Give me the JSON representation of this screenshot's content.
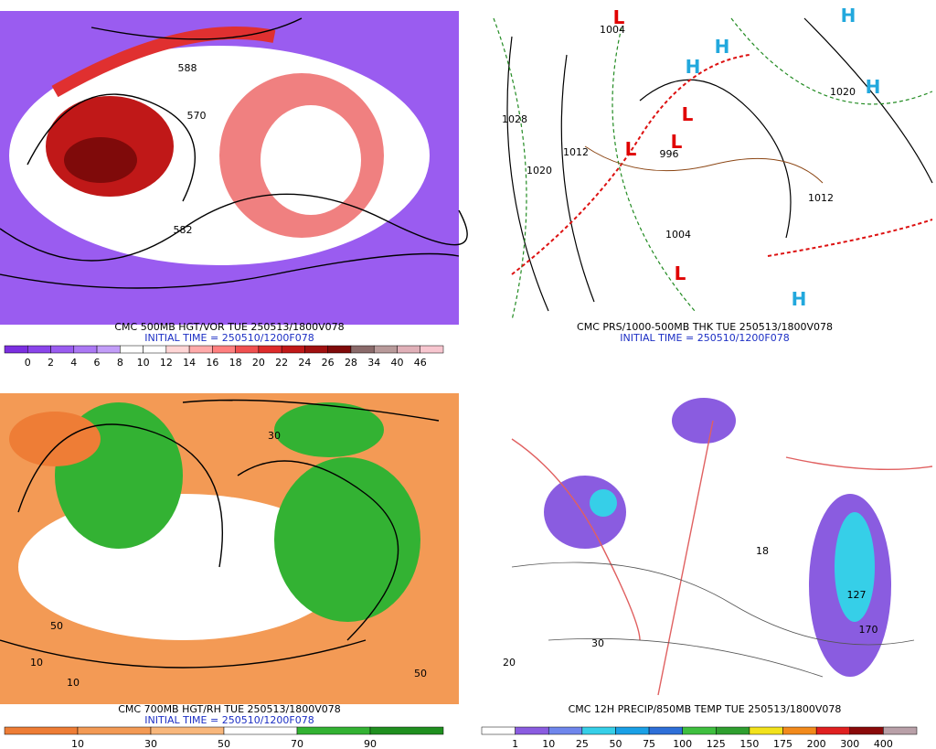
{
  "panels": [
    {
      "title": "CMC 500MB HGT/VOR TUE 250513/1800V078",
      "initial_time": "INITIAL TIME = 250510/1200F078",
      "colorbar": {
        "labels": [
          "0",
          "2",
          "4",
          "6",
          "8",
          "10",
          "12",
          "14",
          "16",
          "18",
          "20",
          "22",
          "24",
          "26",
          "28",
          "34",
          "40",
          "46"
        ],
        "colors": [
          "#7b2fe0",
          "#8a45ea",
          "#9a5cf0",
          "#ab78f4",
          "#c29df8",
          "#ffffff",
          "#ffffff",
          "#ffd6d6",
          "#ffaaaa",
          "#ff7f7f",
          "#f05050",
          "#dd2b2b",
          "#c01818",
          "#a01010",
          "#7f0a0a",
          "#8a6a6a",
          "#b89a9a",
          "#e0b0b8",
          "#f7c6cf"
        ]
      },
      "map_labels": [
        "588",
        "570",
        "582"
      ]
    },
    {
      "title": "CMC PRS/1000-500MB THK TUE 250513/1800V078",
      "initial_time": "INITIAL TIME = 250510/1200F078",
      "map_labels": [
        "1004",
        "1028",
        "1012",
        "1020",
        "996",
        "1004",
        "1012",
        "1020",
        "L",
        "L",
        "L",
        "L",
        "L",
        "H",
        "H",
        "H",
        "H",
        "H"
      ]
    },
    {
      "title": "CMC 700MB HGT/RH TUE 250513/1800V078",
      "initial_time": "INITIAL TIME = 250510/1200F078",
      "colorbar": {
        "labels": [
          "10",
          "30",
          "50",
          "70",
          "90"
        ],
        "colors": [
          "#ee7d36",
          "#f39a55",
          "#f8b77c",
          "#ffffff",
          "#33b233",
          "#1f8f1f"
        ]
      },
      "map_labels": [
        "10",
        "50",
        "30",
        "10",
        "50"
      ]
    },
    {
      "title": "CMC 12H PRECIP/850MB TEMP TUE 250513/1800V078",
      "colorbar": {
        "labels": [
          "1",
          "10",
          "25",
          "50",
          "75",
          "100",
          "125",
          "150",
          "175",
          "200",
          "300",
          "400"
        ],
        "colors": [
          "#ffffff",
          "#8a5ce0",
          "#6f86ec",
          "#36cfe8",
          "#1aa0e6",
          "#2e6fd8",
          "#3fbf3f",
          "#2f9f2f",
          "#f2e21c",
          "#f28a1c",
          "#e02020",
          "#8a0a0a",
          "#b9a0a8"
        ]
      },
      "map_labels": [
        "127",
        "170",
        "18",
        "20",
        "30"
      ]
    }
  ]
}
